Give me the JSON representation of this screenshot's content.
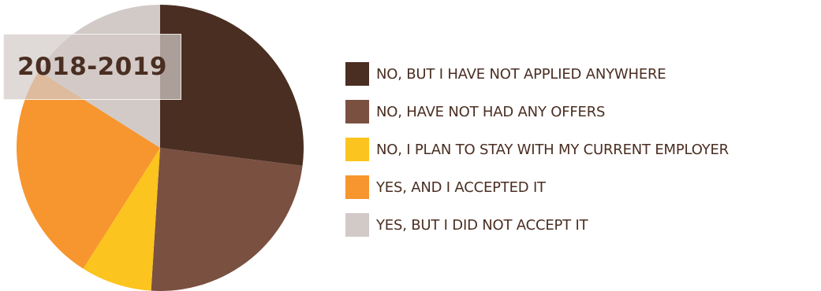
{
  "chart_data": {
    "type": "pie",
    "title": "2018-2019",
    "categories": [
      "NO, BUT I HAVE NOT APPLIED ANYWHERE",
      "NO, HAVE NOT HAD ANY OFFERS",
      "NO, I PLAN TO STAY WITH MY CURRENT EMPLOYER",
      "YES, AND I ACCEPTED IT",
      "YES, BUT I DID NOT ACCEPT IT"
    ],
    "values": [
      27,
      24,
      8,
      25,
      16
    ],
    "colors": [
      "#4a2e22",
      "#7a5041",
      "#fcc41e",
      "#f7952e",
      "#d2cac7"
    ],
    "legend_placement": "right",
    "start_angle_deg": 0,
    "direction": "clockwise"
  }
}
